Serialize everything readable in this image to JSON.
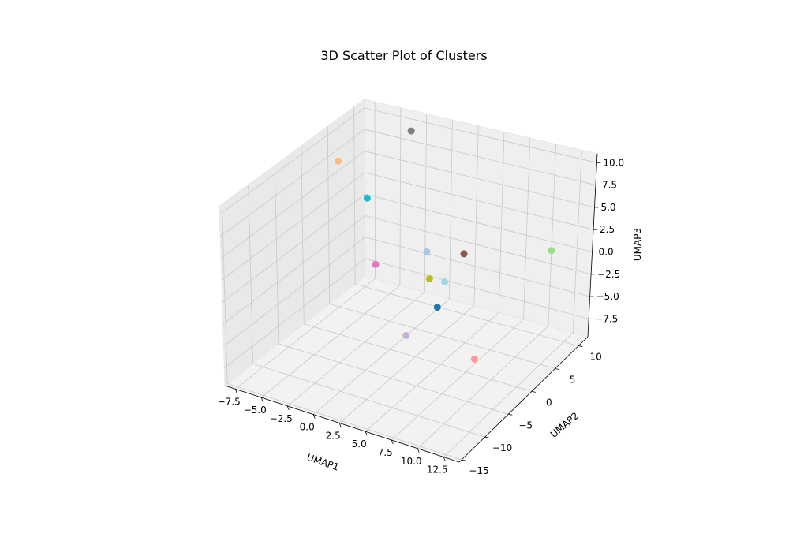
{
  "chart_data": {
    "type": "scatter",
    "title": "3D Scatter Plot of Clusters",
    "xlabel": "UMAP1",
    "ylabel": "UMAP2",
    "zlabel": "UMAP3",
    "projection": "3d",
    "grid": true,
    "xticks": [
      "−7.5",
      "−5.0",
      "−2.5",
      "0.0",
      "2.5",
      "5.0",
      "7.5",
      "10.0",
      "12.5"
    ],
    "yticks": [
      "−15",
      "−10",
      "−5",
      "0",
      "5",
      "10"
    ],
    "zticks": [
      "−7.5",
      "−5.0",
      "−2.5",
      "0.0",
      "2.5",
      "5.0",
      "7.5",
      "10.0"
    ],
    "series": [
      {
        "color": "#1f77b4",
        "points": [
          {
            "x": 5.5,
            "y": -2.0,
            "z": -2.0
          }
        ]
      },
      {
        "color": "#aec7e8",
        "points": [
          {
            "x": 3.0,
            "y": 1.0,
            "z": 2.0
          }
        ]
      },
      {
        "color": "#ffbb78",
        "points": [
          {
            "x": -6.5,
            "y": 3.0,
            "z": 8.5
          }
        ]
      },
      {
        "color": "#98df8a",
        "points": [
          {
            "x": 10.0,
            "y": 12.0,
            "z": -1.0
          }
        ]
      },
      {
        "color": "#ff9896",
        "points": [
          {
            "x": 11.0,
            "y": -6.0,
            "z": -4.0
          }
        ]
      },
      {
        "color": "#c5b0d5",
        "points": [
          {
            "x": 3.0,
            "y": -3.0,
            "z": -5.5
          }
        ]
      },
      {
        "color": "#8c564b",
        "points": [
          {
            "x": 4.0,
            "y": 6.5,
            "z": -0.5
          }
        ]
      },
      {
        "color": "#e377c2",
        "points": [
          {
            "x": 0.0,
            "y": -3.0,
            "z": 1.5
          }
        ]
      },
      {
        "color": "#7f7f7f",
        "points": [
          {
            "x": -2.0,
            "y": 8.0,
            "z": 11.0
          }
        ]
      },
      {
        "color": "#bcbd22",
        "points": [
          {
            "x": 4.0,
            "y": -0.5,
            "z": 0.0
          }
        ]
      },
      {
        "color": "#17becf",
        "points": [
          {
            "x": -3.0,
            "y": 1.5,
            "z": 6.0
          }
        ]
      },
      {
        "color": "#9edae5",
        "points": [
          {
            "x": 5.0,
            "y": 0.5,
            "z": -0.5
          }
        ]
      }
    ]
  }
}
